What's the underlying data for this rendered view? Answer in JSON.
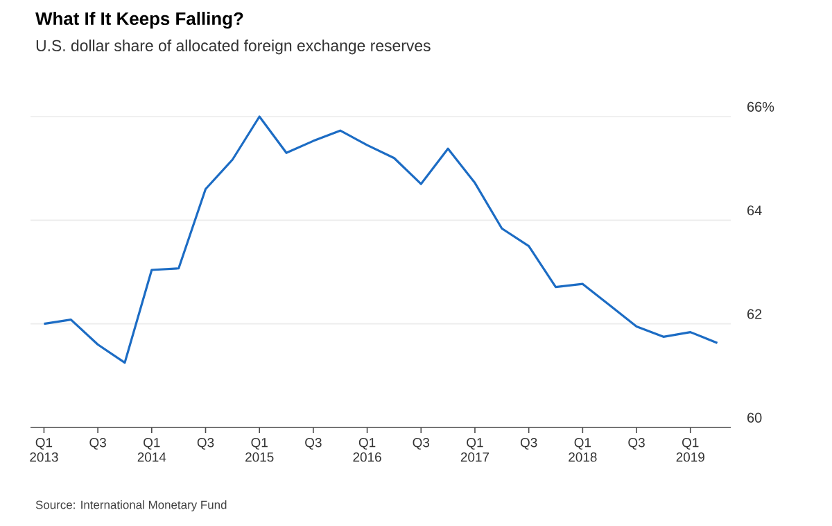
{
  "chart_data": {
    "type": "line",
    "title": "What If It Keeps Falling?",
    "subtitle": "U.S. dollar share of allocated foreign exchange reserves",
    "categories": [
      "Q1 2013",
      null,
      "Q3",
      null,
      "Q1 2014",
      null,
      "Q3",
      null,
      "Q1 2015",
      null,
      "Q3",
      null,
      "Q1 2016",
      null,
      "Q3",
      null,
      "Q1 2017",
      null,
      "Q3",
      null,
      "Q1 2018",
      null,
      "Q3",
      null,
      "Q1 2019",
      null
    ],
    "series": [
      {
        "color": "#1c6cc4",
        "values": [
          62.0,
          62.08,
          61.6,
          61.25,
          63.04,
          63.07,
          64.6,
          65.17,
          66.0,
          65.3,
          65.53,
          65.73,
          65.45,
          65.2,
          64.7,
          65.38,
          64.72,
          63.84,
          63.5,
          62.71,
          62.77,
          62.36,
          61.95,
          61.75,
          61.84,
          61.63
        ]
      }
    ],
    "ylim": [
      60,
      66
    ],
    "yticks": [
      60,
      62,
      64,
      {
        "value": 66,
        "label": "66%"
      }
    ],
    "grid": "y",
    "marker": "none",
    "line_style": "solid",
    "annotations": [
      "Source: International Monetary Fund"
    ]
  }
}
